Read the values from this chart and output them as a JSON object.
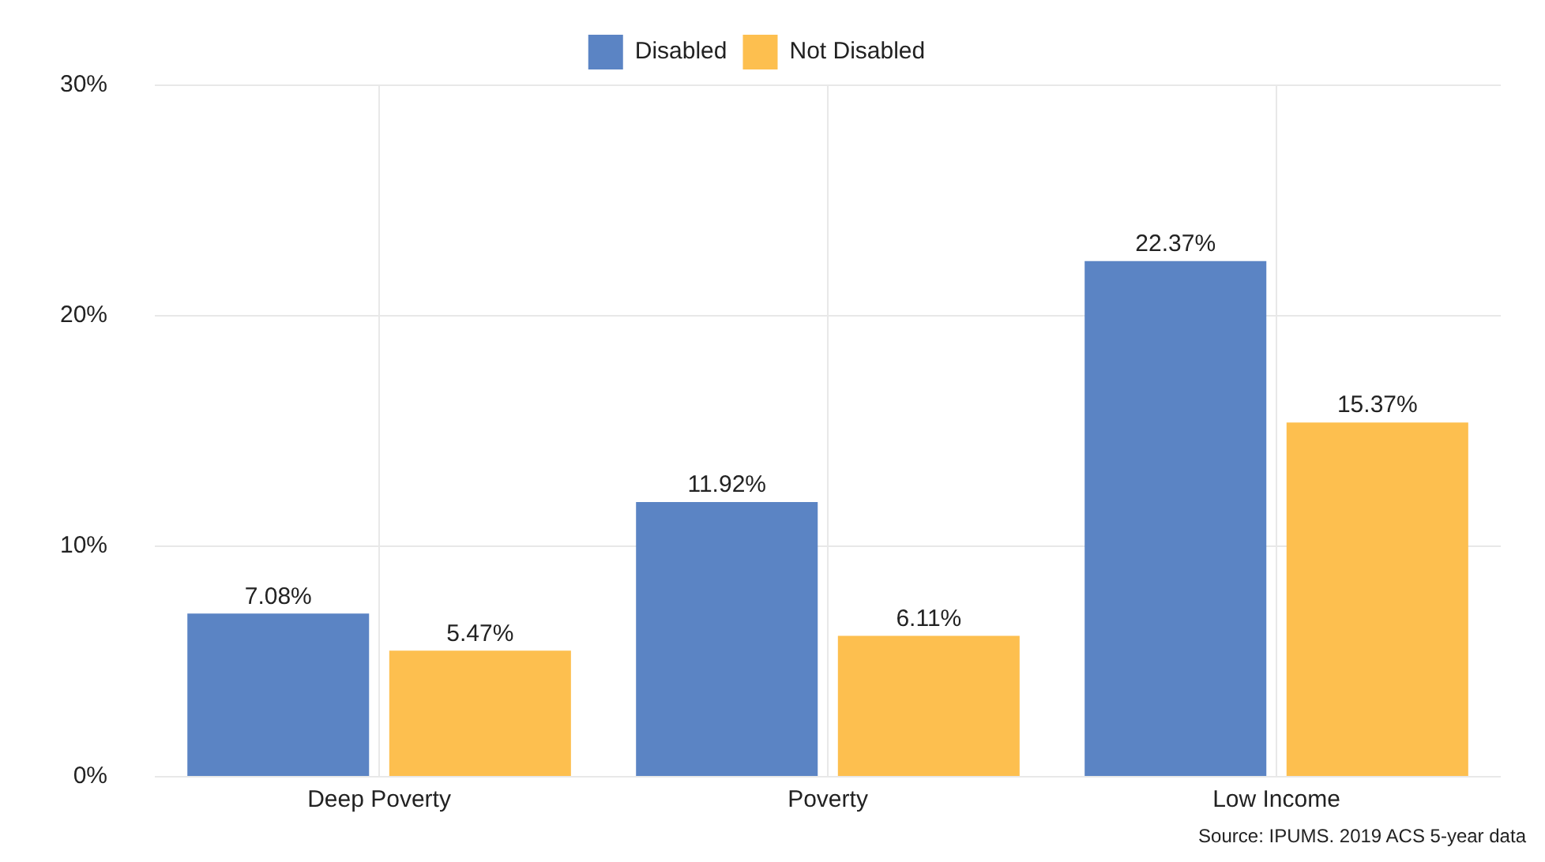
{
  "chart_data": {
    "type": "bar",
    "categories": [
      "Deep Poverty",
      "Poverty",
      "Low Income"
    ],
    "series": [
      {
        "name": "Disabled",
        "color": "#5b84c4",
        "values": [
          7.08,
          11.92,
          22.37
        ]
      },
      {
        "name": "Not Disabled",
        "color": "#fdbf4f",
        "values": [
          5.47,
          6.11,
          15.37
        ]
      }
    ],
    "value_labels": [
      [
        "7.08%",
        "11.92%",
        "22.37%"
      ],
      [
        "5.47%",
        "6.11%",
        "15.37%"
      ]
    ],
    "ylim": [
      0,
      30
    ],
    "yticks": [
      {
        "value": 0,
        "label": "0%"
      },
      {
        "value": 10,
        "label": "10%"
      },
      {
        "value": 20,
        "label": "20%"
      },
      {
        "value": 30,
        "label": "30%"
      }
    ],
    "grid": true,
    "legend": "top",
    "annotations": [
      "Source: IPUMS. 2019 ACS 5-year data"
    ]
  }
}
